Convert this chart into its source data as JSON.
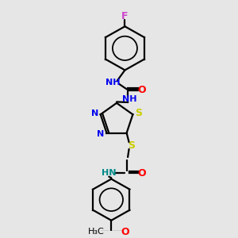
{
  "background_color": "#e6e6e6",
  "figure_size": [
    3.0,
    3.0
  ],
  "dpi": 100,
  "colors": {
    "black": "#000000",
    "F": "#cc44cc",
    "N": "#0000ee",
    "O": "#ff0000",
    "S": "#cccc00",
    "NH_top": "#0000ee",
    "NH_amide": "#008888"
  }
}
